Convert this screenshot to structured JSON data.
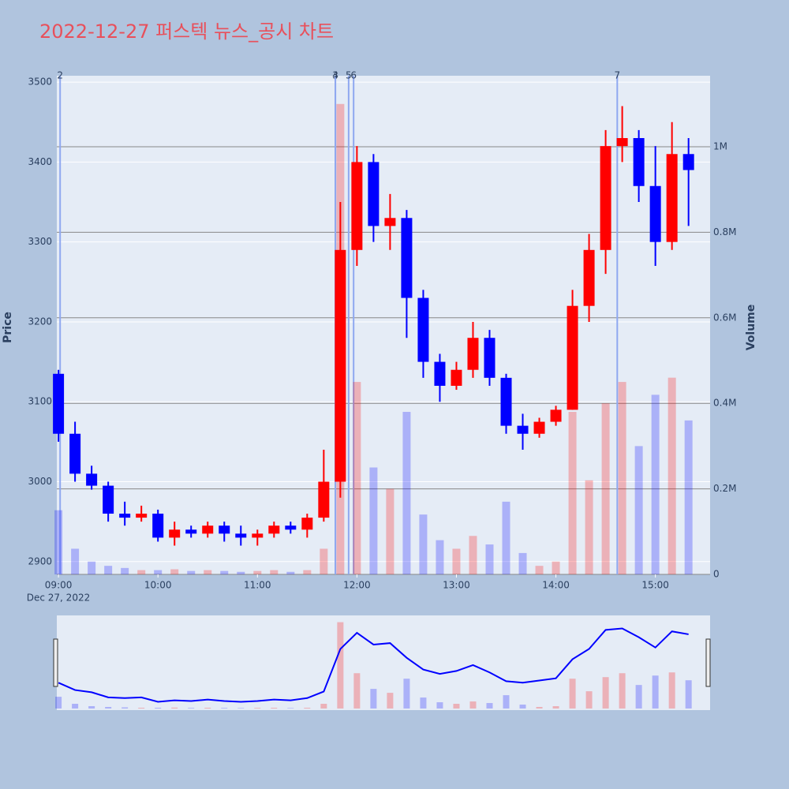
{
  "chart_data": {
    "type": "candlestick",
    "title": "2022-12-27 퍼스텍 뉴스_공시 차트",
    "ylabel": "Price",
    "y2label": "Volume",
    "xsublabel": "Dec 27, 2022",
    "x": [
      "09:00",
      "09:10",
      "09:20",
      "09:30",
      "09:40",
      "09:50",
      "10:00",
      "10:10",
      "10:20",
      "10:30",
      "10:40",
      "10:50",
      "11:00",
      "11:10",
      "11:20",
      "11:30",
      "11:40",
      "11:50",
      "12:00",
      "12:10",
      "12:20",
      "12:30",
      "12:40",
      "12:50",
      "13:00",
      "13:10",
      "13:20",
      "13:30",
      "13:40",
      "13:50",
      "14:00",
      "14:10",
      "14:20",
      "14:30",
      "14:40",
      "14:50",
      "15:00",
      "15:10",
      "15:20"
    ],
    "open": [
      3135,
      3060,
      3010,
      2995,
      2960,
      2955,
      2960,
      2930,
      2940,
      2935,
      2945,
      2935,
      2930,
      2935,
      2945,
      2940,
      2955,
      3000,
      3290,
      3400,
      3320,
      3330,
      3230,
      3150,
      3120,
      3140,
      3180,
      3130,
      3070,
      3060,
      3075,
      3090,
      3220,
      3290,
      3420,
      3430,
      3370,
      3300,
      3410
    ],
    "high": [
      3140,
      3075,
      3020,
      3000,
      2975,
      2970,
      2965,
      2950,
      2945,
      2950,
      2950,
      2945,
      2940,
      2950,
      2950,
      2960,
      3040,
      3350,
      3420,
      3410,
      3360,
      3340,
      3240,
      3160,
      3150,
      3200,
      3190,
      3135,
      3085,
      3080,
      3095,
      3240,
      3310,
      3440,
      3470,
      3440,
      3420,
      3450,
      3430
    ],
    "low": [
      3050,
      3000,
      2990,
      2950,
      2945,
      2950,
      2925,
      2920,
      2930,
      2930,
      2925,
      2920,
      2920,
      2930,
      2935,
      2930,
      2950,
      2980,
      3270,
      3300,
      3290,
      3180,
      3130,
      3100,
      3115,
      3130,
      3120,
      3060,
      3040,
      3055,
      3070,
      3090,
      3200,
      3260,
      3400,
      3350,
      3270,
      3290,
      3320
    ],
    "close": [
      3060,
      3010,
      2995,
      2960,
      2955,
      2960,
      2930,
      2940,
      2935,
      2945,
      2935,
      2930,
      2935,
      2945,
      2940,
      2955,
      3000,
      3290,
      3400,
      3320,
      3330,
      3230,
      3150,
      3120,
      3140,
      3180,
      3130,
      3070,
      3060,
      3075,
      3090,
      3220,
      3290,
      3420,
      3430,
      3370,
      3300,
      3410,
      3390
    ],
    "volume": [
      150000,
      60000,
      30000,
      20000,
      15000,
      10000,
      10000,
      12000,
      8000,
      10000,
      8000,
      6000,
      8000,
      10000,
      6000,
      10000,
      60000,
      1100000,
      450000,
      250000,
      200000,
      380000,
      140000,
      80000,
      60000,
      90000,
      70000,
      170000,
      50000,
      20000,
      30000,
      380000,
      220000,
      400000,
      450000,
      300000,
      420000,
      460000,
      360000
    ],
    "up_color": "#ff0000",
    "down_color": "#0000ff",
    "xlim": [
      "08:59",
      "15:33"
    ],
    "xticks": [
      "09:00",
      "10:00",
      "11:00",
      "12:00",
      "13:00",
      "14:00",
      "15:00"
    ],
    "ylim": [
      2884,
      3508
    ],
    "yticks": [
      2900,
      3000,
      3100,
      3200,
      3300,
      3400,
      3500
    ],
    "y2lim": [
      0,
      1166000
    ],
    "y2ticks": [
      0,
      {
        "value": 200000,
        "label": "0.2M"
      },
      {
        "value": 400000,
        "label": "0.4M"
      },
      {
        "value": 600000,
        "label": "0.6M"
      },
      {
        "value": 800000,
        "label": "0.8M"
      },
      {
        "value": 1000000,
        "label": "1M"
      }
    ],
    "markers": [
      {
        "x": "09:01",
        "label": "2"
      },
      {
        "x": "11:47",
        "label": "3"
      },
      {
        "x": "11:47",
        "label": "4"
      },
      {
        "x": "11:55",
        "label": "5"
      },
      {
        "x": "11:58",
        "label": "6"
      },
      {
        "x": "14:37",
        "label": "7"
      }
    ]
  }
}
